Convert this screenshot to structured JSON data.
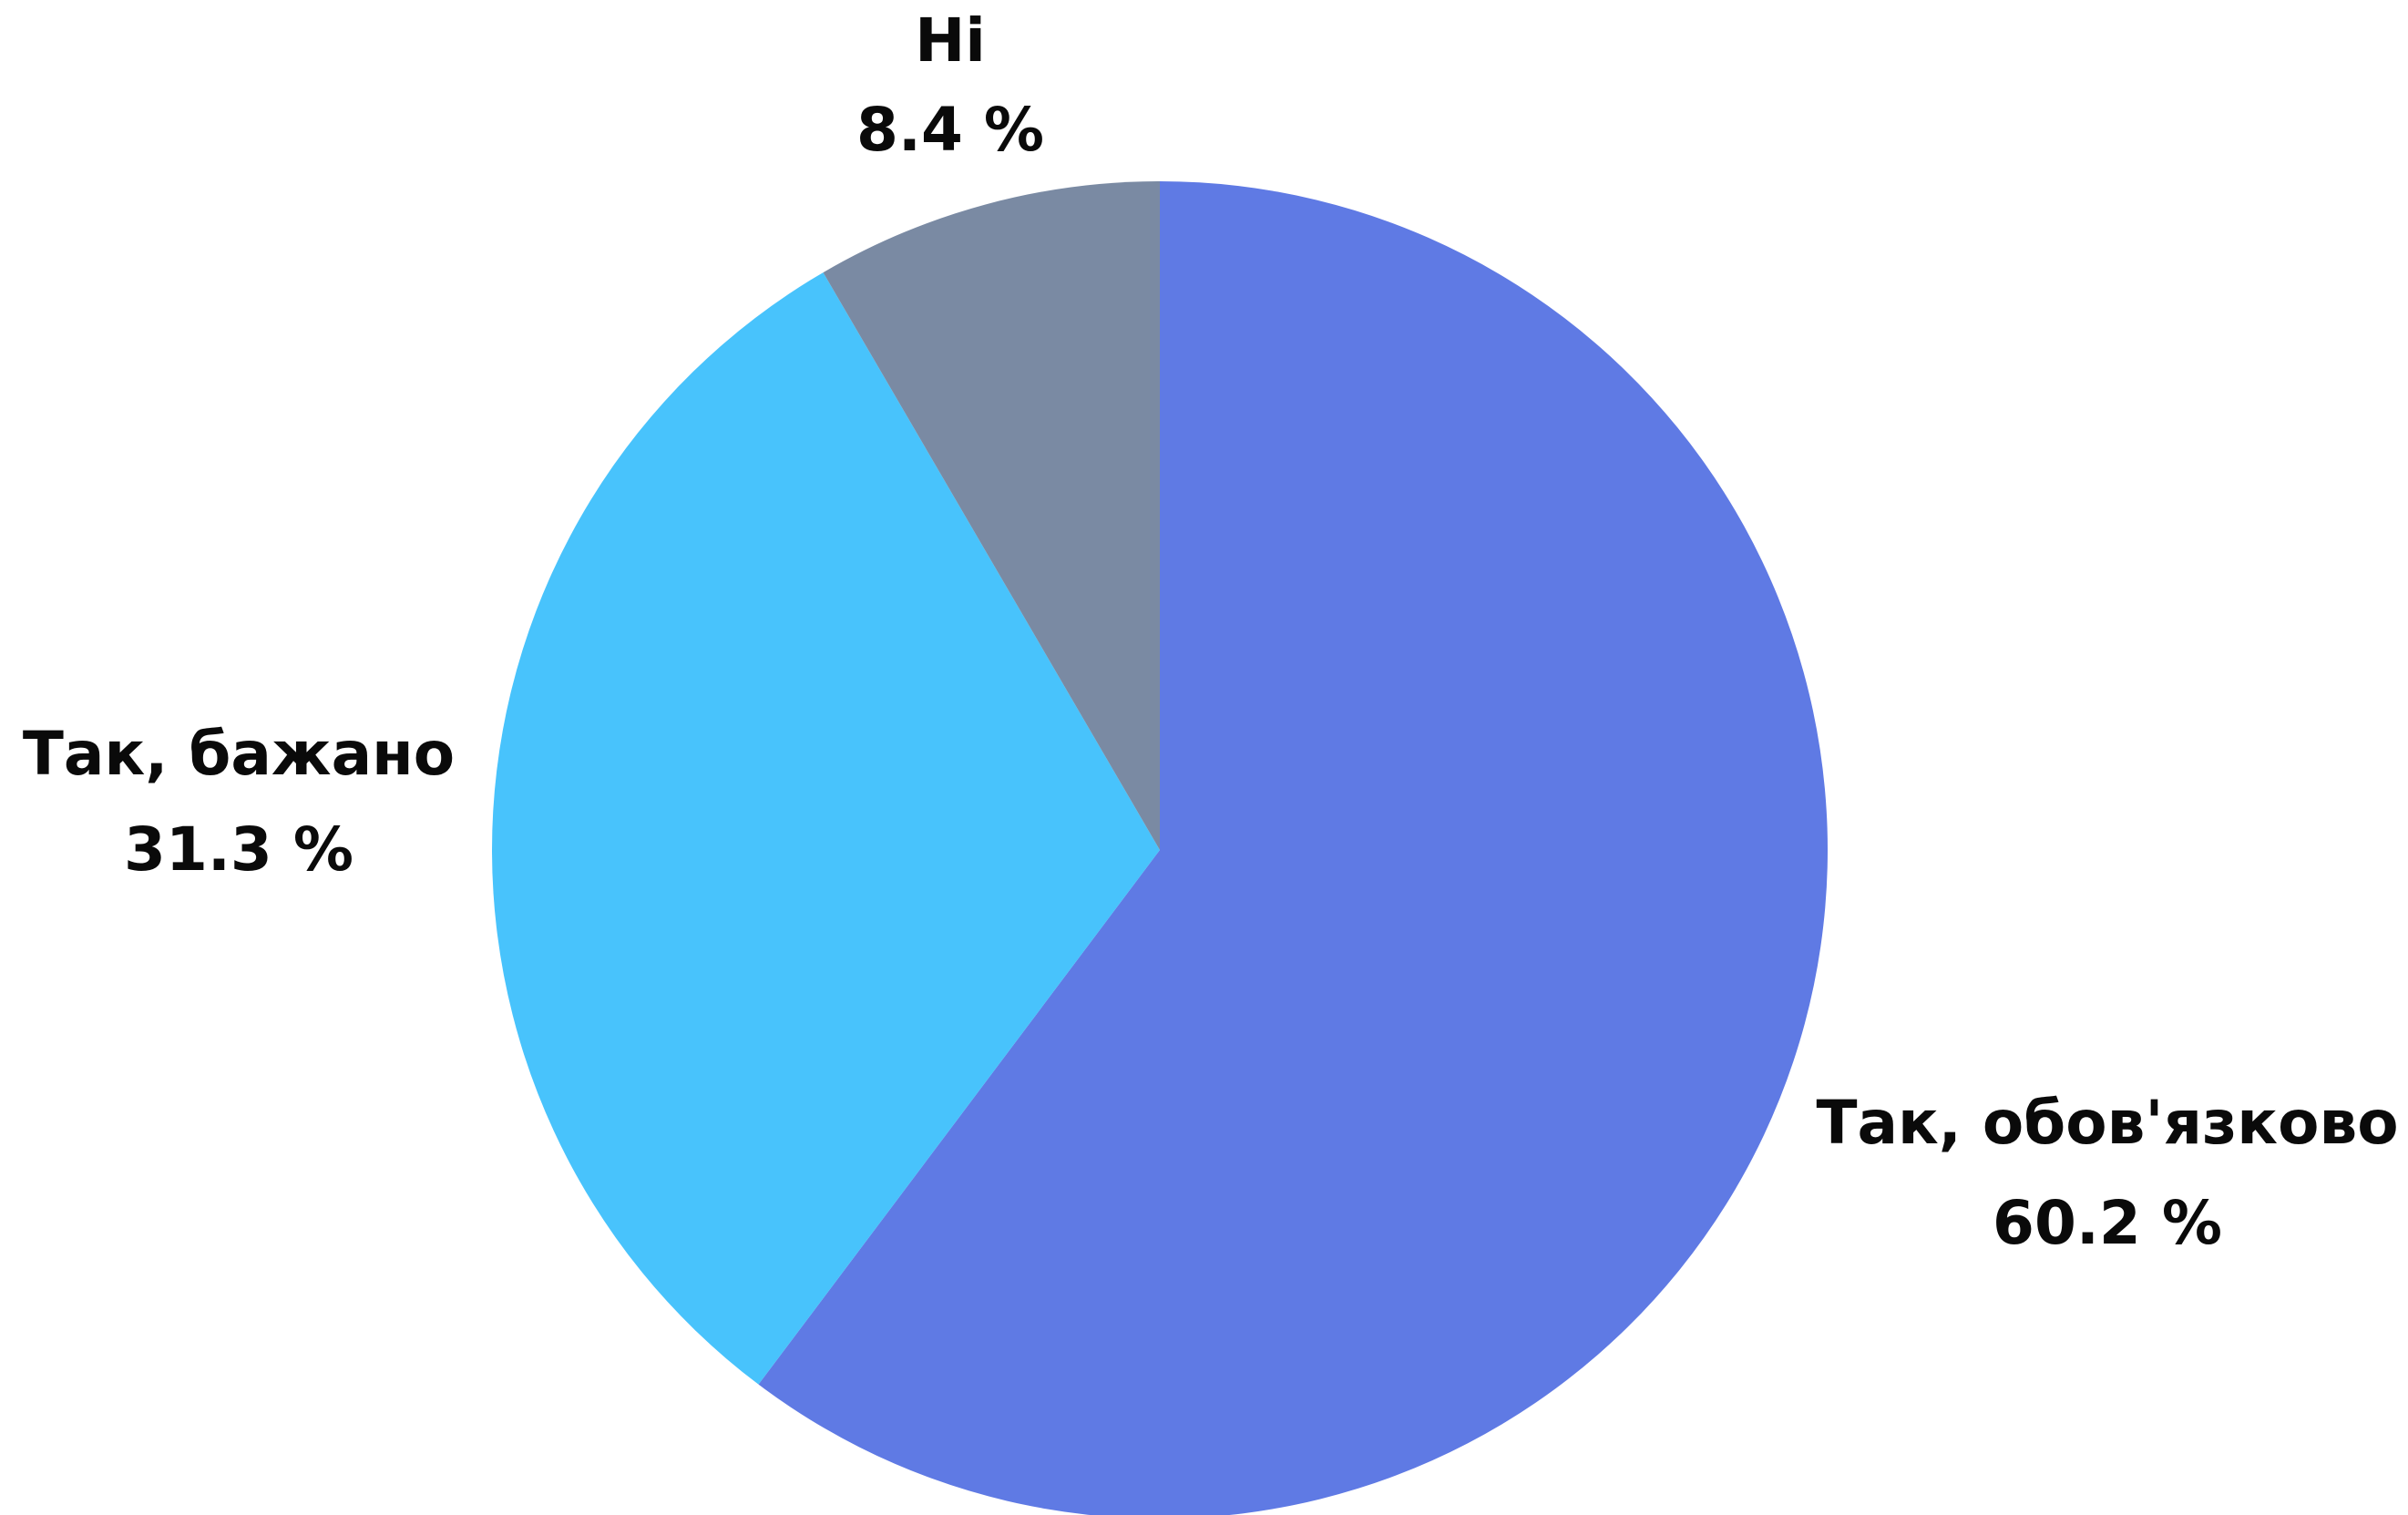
{
  "chart_data": {
    "type": "pie",
    "title": "",
    "slices": [
      {
        "label": "Так, обов'язково",
        "value": 60.2,
        "value_label": "60.2 %",
        "color": "#5f7ae4"
      },
      {
        "label": "Так, бажано",
        "value": 31.3,
        "value_label": "31.3 %",
        "color": "#48c3fc"
      },
      {
        "label": "Ні",
        "value": 8.4,
        "value_label": "8.4 %",
        "color": "#7a8aa3"
      }
    ],
    "start_angle": "12 o'clock",
    "direction": "clockwise",
    "legend": "none",
    "data_labels": "outside"
  }
}
